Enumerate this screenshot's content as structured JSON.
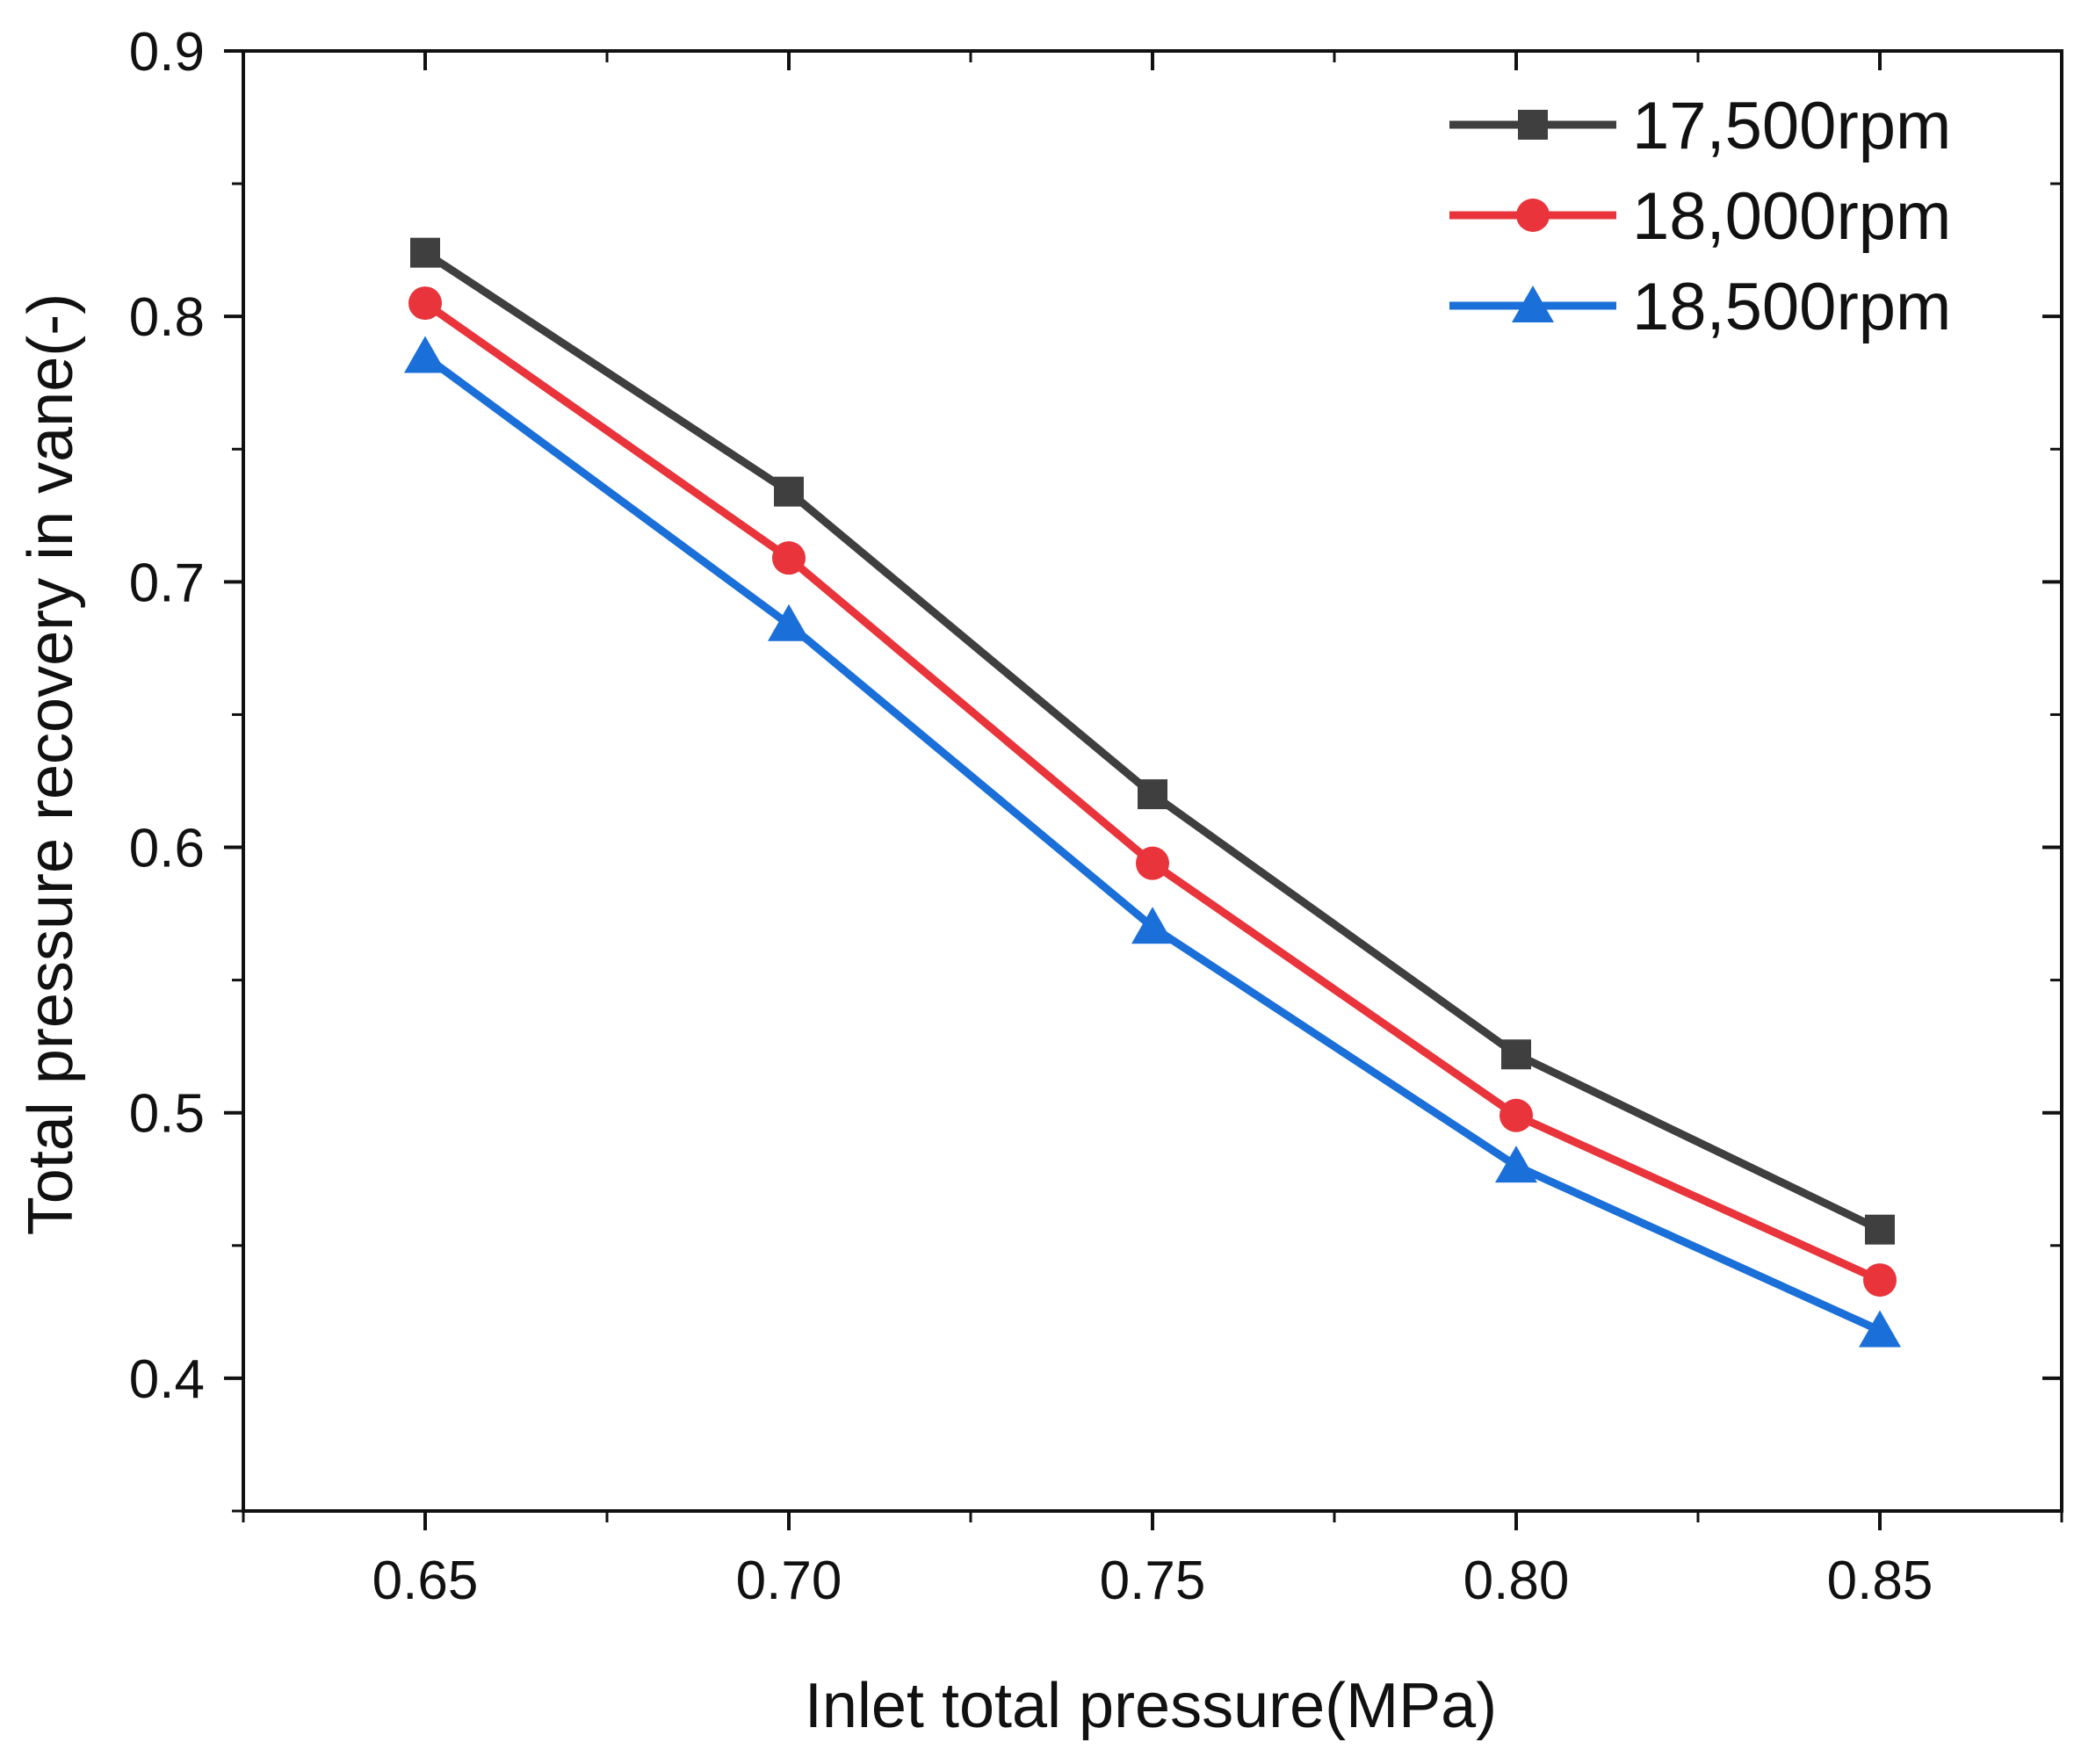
{
  "chart_data": {
    "type": "line",
    "title": "",
    "xlabel": "Inlet total pressure(MPa)",
    "ylabel": "Total pressure recovery in vane(-)",
    "x": [
      0.65,
      0.7,
      0.75,
      0.8,
      0.85
    ],
    "x_tick_labels": [
      "0.65",
      "0.70",
      "0.75",
      "0.80",
      "0.85"
    ],
    "xlim": [
      0.625,
      0.875
    ],
    "y_tick_labels": [
      "0.4",
      "0.5",
      "0.6",
      "0.7",
      "0.8",
      "0.9"
    ],
    "y_ticks": [
      0.4,
      0.5,
      0.6,
      0.7,
      0.8,
      0.9
    ],
    "ylim": [
      0.35,
      0.9
    ],
    "grid": false,
    "legend_position": "top-right",
    "series": [
      {
        "name": "17,500rpm",
        "color": "#3f3f3f",
        "marker": "square",
        "values": [
          0.824,
          0.734,
          0.62,
          0.522,
          0.456
        ]
      },
      {
        "name": "18,000rpm",
        "color": "#e8343a",
        "marker": "circle",
        "values": [
          0.805,
          0.709,
          0.594,
          0.499,
          0.437
        ]
      },
      {
        "name": "18,500rpm",
        "color": "#1a6fd8",
        "marker": "triangle",
        "values": [
          0.785,
          0.684,
          0.57,
          0.48,
          0.418
        ]
      }
    ]
  }
}
